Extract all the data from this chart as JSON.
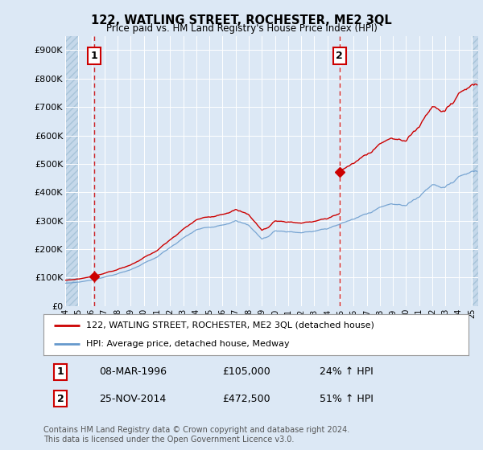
{
  "title": "122, WATLING STREET, ROCHESTER, ME2 3QL",
  "subtitle": "Price paid vs. HM Land Registry's House Price Index (HPI)",
  "ylim": [
    0,
    950000
  ],
  "yticks": [
    0,
    100000,
    200000,
    300000,
    400000,
    500000,
    600000,
    700000,
    800000,
    900000
  ],
  "ytick_labels": [
    "£0",
    "£100K",
    "£200K",
    "£300K",
    "£400K",
    "£500K",
    "£600K",
    "£700K",
    "£800K",
    "£900K"
  ],
  "bg_color": "#dce8f5",
  "hatch_bg": "#c5d8ea",
  "grid_color": "#ffffff",
  "line1_color": "#cc0000",
  "line2_color": "#6699cc",
  "vline_color": "#cc0000",
  "marker1_x": 1996.2,
  "marker1_y": 105000,
  "marker2_x": 2014.92,
  "marker2_y": 472500,
  "vline1_x": 1996.2,
  "vline2_x": 2014.92,
  "legend_line1": "122, WATLING STREET, ROCHESTER, ME2 3QL (detached house)",
  "legend_line2": "HPI: Average price, detached house, Medway",
  "table_rows": [
    {
      "num": "1",
      "date": "08-MAR-1996",
      "price": "£105,000",
      "hpi": "24% ↑ HPI"
    },
    {
      "num": "2",
      "date": "25-NOV-2014",
      "price": "£472,500",
      "hpi": "51% ↑ HPI"
    }
  ],
  "footer": "Contains HM Land Registry data © Crown copyright and database right 2024.\nThis data is licensed under the Open Government Licence v3.0.",
  "xmin": 1994.0,
  "xmax": 2025.5,
  "xtick_years": [
    1994,
    1995,
    1996,
    1997,
    1998,
    1999,
    2000,
    2001,
    2002,
    2003,
    2004,
    2005,
    2006,
    2007,
    2008,
    2009,
    2010,
    2011,
    2012,
    2013,
    2014,
    2015,
    2016,
    2017,
    2018,
    2019,
    2020,
    2021,
    2022,
    2023,
    2024,
    2025
  ]
}
